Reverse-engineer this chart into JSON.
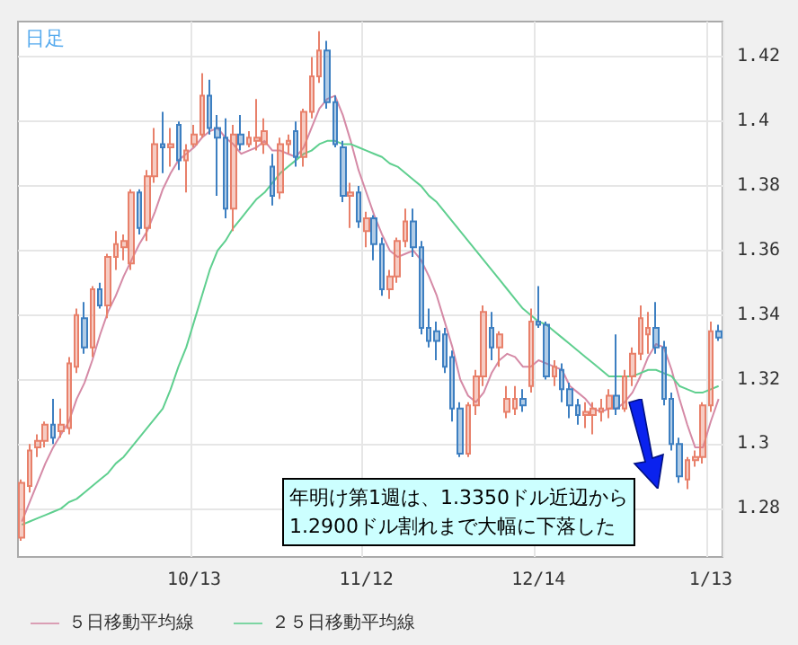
{
  "chart_data": {
    "type": "candlestick",
    "title": "日足",
    "annotations": [
      "年明け第1週は、1.3350ドル近辺から\n1.2900ドル割れまで大幅に下落した"
    ],
    "categories": [
      null,
      null,
      null,
      null,
      null,
      null,
      null,
      null,
      null,
      null,
      null,
      null,
      null,
      null,
      null,
      null,
      null,
      null,
      null,
      null,
      null,
      null,
      "10/13",
      null,
      null,
      null,
      null,
      null,
      null,
      null,
      null,
      null,
      null,
      null,
      null,
      null,
      null,
      null,
      null,
      null,
      null,
      null,
      null,
      null,
      "11/12",
      null,
      null,
      null,
      null,
      null,
      null,
      null,
      null,
      null,
      null,
      null,
      null,
      null,
      null,
      null,
      null,
      null,
      null,
      null,
      null,
      null,
      "12/14",
      null,
      null,
      null,
      null,
      null,
      null,
      null,
      null,
      null,
      null,
      null,
      null,
      null,
      null,
      null,
      null,
      null,
      null,
      null,
      null,
      null,
      "1/13",
      null
    ],
    "ohlc": [
      [
        1.271,
        1.289,
        1.27,
        1.288
      ],
      [
        1.287,
        1.3,
        1.285,
        1.298
      ],
      [
        1.299,
        1.303,
        1.296,
        1.301
      ],
      [
        1.301,
        1.307,
        1.299,
        1.306
      ],
      [
        1.306,
        1.314,
        1.3,
        1.302
      ],
      [
        1.304,
        1.311,
        1.302,
        1.306
      ],
      [
        1.305,
        1.327,
        1.303,
        1.325
      ],
      [
        1.324,
        1.342,
        1.322,
        1.34
      ],
      [
        1.339,
        1.344,
        1.328,
        1.33
      ],
      [
        1.33,
        1.349,
        1.327,
        1.348
      ],
      [
        1.348,
        1.35,
        1.342,
        1.343
      ],
      [
        1.343,
        1.359,
        1.339,
        1.358
      ],
      [
        1.358,
        1.366,
        1.354,
        1.362
      ],
      [
        1.361,
        1.365,
        1.357,
        1.363
      ],
      [
        1.356,
        1.379,
        1.354,
        1.378
      ],
      [
        1.378,
        1.379,
        1.365,
        1.367
      ],
      [
        1.367,
        1.385,
        1.363,
        1.383
      ],
      [
        1.383,
        1.398,
        1.381,
        1.393
      ],
      [
        1.393,
        1.403,
        1.384,
        1.392
      ],
      [
        1.392,
        1.398,
        1.386,
        1.393
      ],
      [
        1.399,
        1.4,
        1.385,
        1.388
      ],
      [
        1.388,
        1.393,
        1.378,
        1.391
      ],
      [
        1.393,
        1.399,
        1.392,
        1.396
      ],
      [
        1.396,
        1.415,
        1.395,
        1.408
      ],
      [
        1.408,
        1.413,
        1.396,
        1.398
      ],
      [
        1.398,
        1.402,
        1.377,
        1.395
      ],
      [
        1.395,
        1.401,
        1.37,
        1.373
      ],
      [
        1.373,
        1.399,
        1.366,
        1.396
      ],
      [
        1.396,
        1.402,
        1.391,
        1.393
      ],
      [
        1.393,
        1.397,
        1.392,
        1.395
      ],
      [
        1.394,
        1.407,
        1.391,
        1.395
      ],
      [
        1.393,
        1.401,
        1.39,
        1.397
      ],
      [
        1.386,
        1.39,
        1.374,
        1.377
      ],
      [
        1.378,
        1.395,
        1.376,
        1.393
      ],
      [
        1.393,
        1.396,
        1.39,
        1.394
      ],
      [
        1.397,
        1.4,
        1.386,
        1.389
      ],
      [
        1.389,
        1.404,
        1.386,
        1.403
      ],
      [
        1.403,
        1.42,
        1.401,
        1.414
      ],
      [
        1.414,
        1.428,
        1.412,
        1.422
      ],
      [
        1.422,
        1.425,
        1.404,
        1.406
      ],
      [
        1.406,
        1.408,
        1.392,
        1.393
      ],
      [
        1.392,
        1.394,
        1.375,
        1.377
      ],
      [
        1.377,
        1.381,
        1.367,
        1.378
      ],
      [
        1.378,
        1.38,
        1.367,
        1.369
      ],
      [
        1.366,
        1.372,
        1.361,
        1.37
      ],
      [
        1.37,
        1.371,
        1.357,
        1.362
      ],
      [
        1.362,
        1.364,
        1.346,
        1.348
      ],
      [
        1.348,
        1.354,
        1.345,
        1.352
      ],
      [
        1.352,
        1.364,
        1.35,
        1.363
      ],
      [
        1.363,
        1.373,
        1.361,
        1.369
      ],
      [
        1.369,
        1.373,
        1.358,
        1.361
      ],
      [
        1.361,
        1.363,
        1.334,
        1.336
      ],
      [
        1.336,
        1.342,
        1.33,
        1.332
      ],
      [
        1.335,
        1.338,
        1.326,
        1.332
      ],
      [
        1.334,
        1.336,
        1.322,
        1.324
      ],
      [
        1.327,
        1.329,
        1.307,
        1.311
      ],
      [
        1.311,
        1.313,
        1.296,
        1.297
      ],
      [
        1.297,
        1.313,
        1.296,
        1.312
      ],
      [
        1.312,
        1.323,
        1.309,
        1.321
      ],
      [
        1.321,
        1.343,
        1.318,
        1.341
      ],
      [
        1.336,
        1.341,
        1.326,
        1.33
      ],
      [
        1.33,
        1.335,
        1.324,
        1.334
      ],
      [
        1.31,
        1.318,
        1.308,
        1.314
      ],
      [
        1.311,
        1.318,
        1.309,
        1.314
      ],
      [
        1.314,
        1.317,
        1.31,
        1.312
      ],
      [
        1.318,
        1.342,
        1.316,
        1.338
      ],
      [
        1.338,
        1.349,
        1.336,
        1.337
      ],
      [
        1.337,
        1.338,
        1.32,
        1.321
      ],
      [
        1.321,
        1.326,
        1.318,
        1.324
      ],
      [
        1.323,
        1.325,
        1.313,
        1.317
      ],
      [
        1.317,
        1.319,
        1.308,
        1.312
      ],
      [
        1.312,
        1.314,
        1.306,
        1.309
      ],
      [
        1.309,
        1.313,
        1.305,
        1.31
      ],
      [
        1.309,
        1.313,
        1.303,
        1.311
      ],
      [
        1.31,
        1.314,
        1.307,
        1.311
      ],
      [
        1.311,
        1.317,
        1.308,
        1.315
      ],
      [
        1.315,
        1.334,
        1.309,
        1.311
      ],
      [
        1.311,
        1.323,
        1.31,
        1.321
      ],
      [
        1.321,
        1.33,
        1.318,
        1.328
      ],
      [
        1.328,
        1.343,
        1.326,
        1.339
      ],
      [
        1.334,
        1.341,
        1.328,
        1.336
      ],
      [
        1.336,
        1.344,
        1.328,
        1.33
      ],
      [
        1.33,
        1.332,
        1.312,
        1.314
      ],
      [
        1.314,
        1.316,
        1.298,
        1.3
      ],
      [
        1.3,
        1.302,
        1.288,
        1.29
      ],
      [
        1.289,
        1.296,
        1.286,
        1.295
      ],
      [
        1.295,
        1.298,
        1.293,
        1.296
      ],
      [
        1.296,
        1.313,
        1.294,
        1.312
      ],
      [
        1.312,
        1.338,
        1.31,
        1.335
      ],
      [
        1.335,
        1.337,
        1.332,
        1.333
      ]
    ],
    "colors": [
      "#e8806a",
      "#e8806a",
      "#e8806a",
      "#e8806a",
      "#3d7fc1",
      "#e8806a",
      "#e8806a",
      "#e8806a",
      "#3d7fc1",
      "#e8806a",
      "#3d7fc1",
      "#e8806a",
      "#e8806a",
      "#e8806a",
      "#e8806a",
      "#3d7fc1",
      "#e8806a",
      "#e8806a",
      "#3d7fc1",
      "#e8806a",
      "#3d7fc1",
      "#e8806a",
      "#e8806a",
      "#e8806a",
      "#3d7fc1",
      "#3d7fc1",
      "#3d7fc1",
      "#e8806a",
      "#3d7fc1",
      "#e8806a",
      "#e8806a",
      "#e8806a",
      "#3d7fc1",
      "#e8806a",
      "#e8806a",
      "#3d7fc1",
      "#e8806a",
      "#e8806a",
      "#e8806a",
      "#3d7fc1",
      "#3d7fc1",
      "#3d7fc1",
      "#e8806a",
      "#3d7fc1",
      "#e8806a",
      "#3d7fc1",
      "#3d7fc1",
      "#e8806a",
      "#e8806a",
      "#e8806a",
      "#3d7fc1",
      "#3d7fc1",
      "#3d7fc1",
      "#3d7fc1",
      "#3d7fc1",
      "#3d7fc1",
      "#3d7fc1",
      "#e8806a",
      "#e8806a",
      "#e8806a",
      "#3d7fc1",
      "#e8806a",
      "#e8806a",
      "#e8806a",
      "#3d7fc1",
      "#e8806a",
      "#3d7fc1",
      "#3d7fc1",
      "#e8806a",
      "#3d7fc1",
      "#3d7fc1",
      "#3d7fc1",
      "#e8806a",
      "#e8806a",
      "#e8806a",
      "#e8806a",
      "#3d7fc1",
      "#e8806a",
      "#e8806a",
      "#e8806a",
      "#e8806a",
      "#3d7fc1",
      "#3d7fc1",
      "#3d7fc1",
      "#3d7fc1",
      "#e8806a",
      "#e8806a",
      "#e8806a",
      "#e8806a",
      "#3d7fc1"
    ],
    "series": [
      {
        "type": "line",
        "name": "５日移動平均線",
        "color": "#d58aa6",
        "values": [
          1.276,
          1.282,
          1.288,
          1.294,
          1.299,
          1.303,
          1.307,
          1.314,
          1.319,
          1.326,
          1.334,
          1.341,
          1.346,
          1.352,
          1.357,
          1.362,
          1.366,
          1.372,
          1.379,
          1.384,
          1.388,
          1.39,
          1.392,
          1.395,
          1.397,
          1.398,
          1.395,
          1.393,
          1.39,
          1.391,
          1.392,
          1.394,
          1.391,
          1.391,
          1.39,
          1.389,
          1.392,
          1.398,
          1.404,
          1.407,
          1.408,
          1.402,
          1.394,
          1.385,
          1.378,
          1.371,
          1.365,
          1.36,
          1.358,
          1.359,
          1.36,
          1.357,
          1.352,
          1.346,
          1.338,
          1.33,
          1.32,
          1.315,
          1.313,
          1.316,
          1.322,
          1.326,
          1.328,
          1.327,
          1.324,
          1.324,
          1.326,
          1.325,
          1.324,
          1.323,
          1.318,
          1.316,
          1.314,
          1.311,
          1.31,
          1.311,
          1.311,
          1.313,
          1.316,
          1.321,
          1.327,
          1.331,
          1.33,
          1.323,
          1.314,
          1.306,
          1.299,
          1.299,
          1.307,
          1.314
        ]
      },
      {
        "type": "line",
        "name": "２５日移動平均線",
        "color": "#5fcf8f",
        "values": [
          1.275,
          1.276,
          1.277,
          1.278,
          1.279,
          1.28,
          1.282,
          1.283,
          1.285,
          1.287,
          1.289,
          1.291,
          1.294,
          1.296,
          1.299,
          1.302,
          1.305,
          1.308,
          1.311,
          1.317,
          1.324,
          1.33,
          1.338,
          1.346,
          1.354,
          1.36,
          1.363,
          1.367,
          1.37,
          1.373,
          1.376,
          1.378,
          1.381,
          1.384,
          1.386,
          1.388,
          1.39,
          1.391,
          1.393,
          1.394,
          1.394,
          1.393,
          1.393,
          1.392,
          1.391,
          1.39,
          1.389,
          1.387,
          1.386,
          1.384,
          1.382,
          1.38,
          1.377,
          1.375,
          1.372,
          1.369,
          1.366,
          1.363,
          1.36,
          1.357,
          1.354,
          1.351,
          1.348,
          1.345,
          1.342,
          1.34,
          1.338,
          1.337,
          1.335,
          1.333,
          1.331,
          1.329,
          1.327,
          1.325,
          1.323,
          1.321,
          1.321,
          1.321,
          1.321,
          1.322,
          1.323,
          1.323,
          1.322,
          1.321,
          1.318,
          1.317,
          1.316,
          1.316,
          1.317,
          1.318
        ]
      }
    ],
    "ylim": [
      1.265,
      1.431
    ],
    "yticks": [
      1.28,
      1.3,
      1.32,
      1.34,
      1.36,
      1.38,
      1.4,
      1.42
    ],
    "grid": true,
    "legend": "bottom left",
    "marker": "none",
    "line_style": "solid"
  }
}
